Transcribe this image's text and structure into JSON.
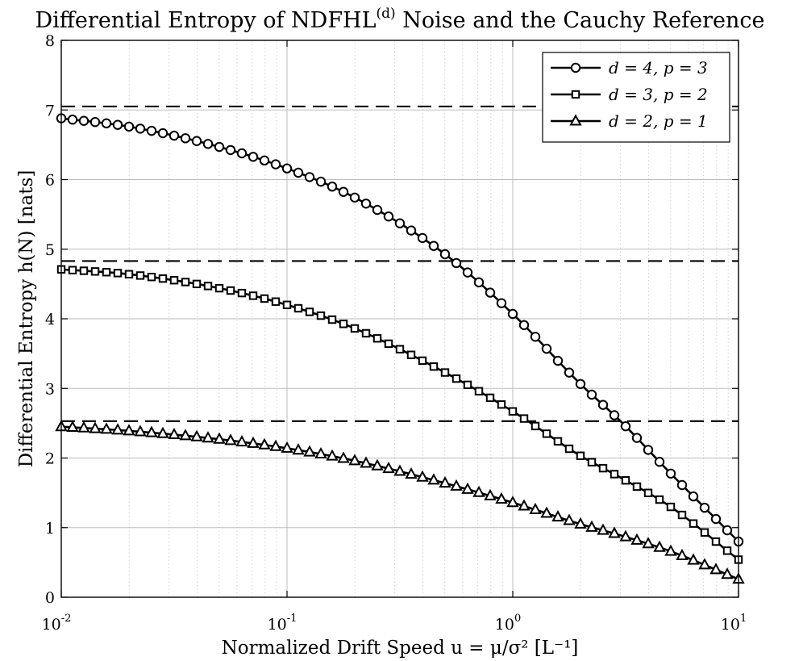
{
  "chart_data": {
    "type": "line",
    "title": {
      "prefix": "Differential Entropy of NDFHL",
      "superscript": "(d)",
      "suffix": " Noise and the Cauchy Reference"
    },
    "xlabel": "Normalized Drift Speed u = μ/σ² [L⁻¹]",
    "ylabel": "Differential Entropy h(N) [nats]",
    "xscale": "log",
    "xlim": [
      0.01,
      10
    ],
    "ylim": [
      0,
      8
    ],
    "grid": true,
    "legend_position": "top-right",
    "x_ticks": [
      {
        "base": "10",
        "exp": "-2",
        "value": 0.01
      },
      {
        "base": "10",
        "exp": "-1",
        "value": 0.1
      },
      {
        "base": "10",
        "exp": "0",
        "value": 1
      },
      {
        "base": "10",
        "exp": "1",
        "value": 10
      }
    ],
    "y_ticks": [
      "0",
      "1",
      "2",
      "3",
      "4",
      "5",
      "6",
      "7",
      "8"
    ],
    "reference_lines": [
      {
        "name": "Cauchy reference (d = 4, p = 3)",
        "y": 7.05
      },
      {
        "name": "Cauchy reference (d = 3, p = 2)",
        "y": 4.83
      },
      {
        "name": "Cauchy reference (d = 2, p = 1)",
        "y": 2.53
      }
    ],
    "series": [
      {
        "name": "d = 4, p = 3",
        "marker": "circle",
        "x": [
          0.01,
          0.02,
          0.05,
          0.1,
          0.2,
          0.5,
          1,
          2,
          3,
          5,
          10
        ],
        "y": [
          6.88,
          6.76,
          6.47,
          6.16,
          5.74,
          4.93,
          4.07,
          3.06,
          2.53,
          1.78,
          0.8
        ]
      },
      {
        "name": "d = 3, p = 2",
        "marker": "square",
        "x": [
          0.01,
          0.02,
          0.05,
          0.1,
          0.2,
          0.5,
          1,
          2,
          3,
          5,
          10
        ],
        "y": [
          4.71,
          4.64,
          4.44,
          4.2,
          3.86,
          3.23,
          2.67,
          2.03,
          1.72,
          1.3,
          0.54
        ]
      },
      {
        "name": "d = 2, p = 1",
        "marker": "triangle",
        "x": [
          0.01,
          0.02,
          0.05,
          0.1,
          0.2,
          0.5,
          1,
          2,
          3,
          5,
          10
        ],
        "y": [
          2.45,
          2.39,
          2.27,
          2.14,
          1.96,
          1.64,
          1.36,
          1.05,
          0.89,
          0.66,
          0.26
        ]
      }
    ]
  }
}
